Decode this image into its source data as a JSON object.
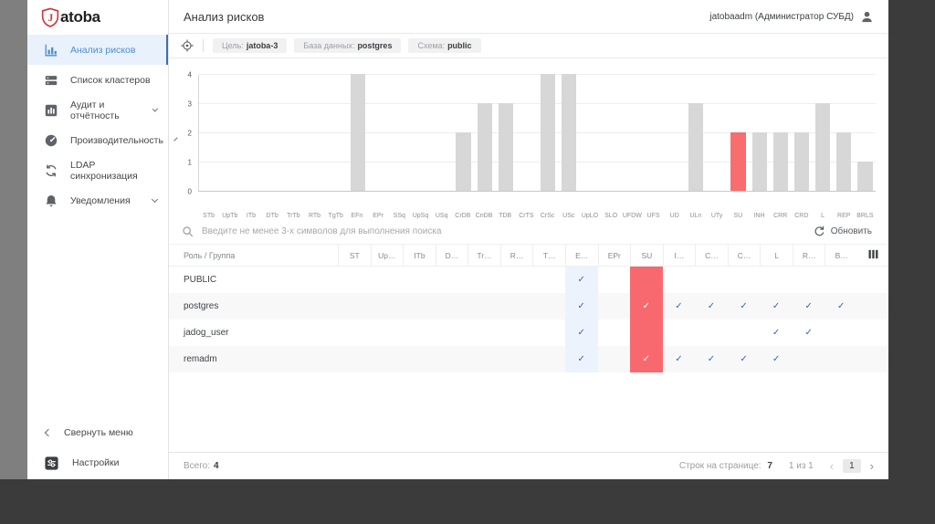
{
  "app": {
    "logo_letter": "J",
    "logo_text": "atoba"
  },
  "header": {
    "title": "Анализ рисков",
    "user": "jatobaadm  (Администратор СУБД)"
  },
  "sidebar": {
    "items": [
      {
        "label": "Анализ рисков",
        "icon": "analysis",
        "active": true,
        "chevron": false
      },
      {
        "label": "Список кластеров",
        "icon": "clusters",
        "active": false,
        "chevron": false
      },
      {
        "label": "Аудит и отчётность",
        "icon": "audit",
        "active": false,
        "chevron": true
      },
      {
        "label": "Производительность",
        "icon": "performance",
        "active": false,
        "chevron": true
      },
      {
        "label": "LDAP синхронизация",
        "icon": "ldap-sync",
        "active": false,
        "chevron": false
      },
      {
        "label": "Уведомления",
        "icon": "notifications",
        "active": false,
        "chevron": true
      }
    ],
    "collapse_label": "Свернуть меню",
    "settings_label": "Настройки"
  },
  "toolbar": {
    "chips": [
      {
        "label": "Цель:",
        "value": "jatoba-3"
      },
      {
        "label": "База данных:",
        "value": "postgres"
      },
      {
        "label": "Схема:",
        "value": "public"
      }
    ]
  },
  "chart_data": {
    "type": "bar",
    "title": "",
    "xlabel": "",
    "ylabel": "",
    "ylim": [
      0,
      4
    ],
    "yticks": [
      0,
      1,
      2,
      3,
      4
    ],
    "grid": true,
    "categories": [
      "STb",
      "UpTb",
      "ITb",
      "DTb",
      "TrTb",
      "RTb",
      "TgTb",
      "EFn",
      "EPr",
      "SSq",
      "UpSq",
      "USq",
      "CrDB",
      "CnDB",
      "TDB",
      "CrTS",
      "CrSc",
      "USc",
      "UpLO",
      "SLO",
      "UFDW",
      "UFS",
      "UD",
      "ULn",
      "UTy",
      "SU",
      "INH",
      "CRR",
      "CRD",
      "L",
      "REP",
      "BRLS"
    ],
    "values": [
      0,
      0,
      0,
      0,
      0,
      0,
      0,
      4,
      0,
      0,
      0,
      0,
      2,
      3,
      3,
      0,
      4,
      4,
      0,
      0,
      0,
      0,
      0,
      3,
      0,
      2,
      2,
      2,
      2,
      3,
      2,
      1
    ],
    "highlight_category": "SU",
    "bar_color": "#d7d7d7",
    "highlight_color": "#f86e6e"
  },
  "search": {
    "placeholder": "Введите не менее 3-х символов для выполнения поиска",
    "refresh_label": "Обновить"
  },
  "table": {
    "role_header": "Роль / Группа",
    "columns": [
      "ST",
      "Up…",
      "ITb",
      "D…",
      "Tr…",
      "R…",
      "T…",
      "E…",
      "EPr",
      "SU",
      "I…",
      "C…",
      "C…",
      "L",
      "R…",
      "B…"
    ],
    "highlight_blue_col": 7,
    "highlight_red_col": 9,
    "rows": [
      {
        "name": "PUBLIC",
        "checks": [
          7
        ]
      },
      {
        "name": "postgres",
        "checks": [
          7,
          9,
          10,
          11,
          12,
          13,
          14,
          15
        ]
      },
      {
        "name": "jadog_user",
        "checks": [
          7,
          13,
          14
        ]
      },
      {
        "name": "remadm",
        "checks": [
          7,
          9,
          10,
          11,
          12,
          13
        ]
      }
    ]
  },
  "footer": {
    "total_label": "Всего:",
    "total_value": "4",
    "rows_per_page_label": "Строк на странице:",
    "rows_per_page_value": "7",
    "page_info": "1 из 1",
    "current_page": "1"
  },
  "colors": {
    "accent_blue": "#4d8fd1",
    "active_indicator": "#3f6fa8",
    "bar_gray": "#d7d7d7",
    "bar_red": "#f86e6e",
    "check_blue": "#3d63b5",
    "column_blue_bg": "#edf3fd",
    "column_red_bg": "#f8696f"
  }
}
